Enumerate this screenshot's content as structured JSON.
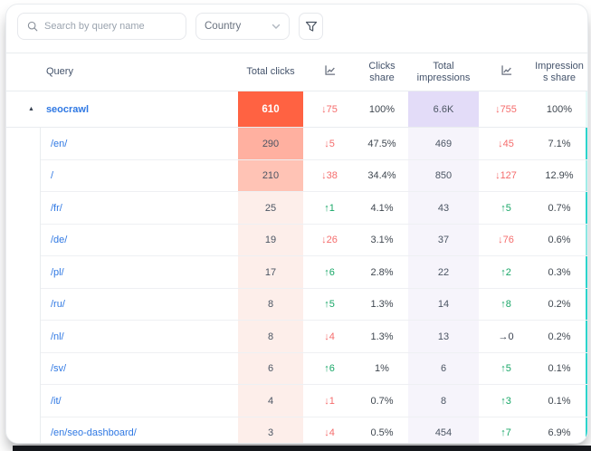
{
  "toolbar": {
    "search": {
      "placeholder": "Search by query name",
      "value": ""
    },
    "country_select": {
      "label": "Country"
    }
  },
  "table": {
    "headers": {
      "query": "Query",
      "total_clicks": "Total clicks",
      "clicks_share_lines": [
        "Clicks",
        "share"
      ],
      "total_impressions_lines": [
        "Total",
        "impressions"
      ],
      "impressions_share_lines": [
        "Impression",
        "s share"
      ]
    },
    "rows": [
      {
        "query": "seocrawl",
        "is_parent": true,
        "total_clicks": "610",
        "clicks_trend": {
          "text": "↓75",
          "dir": "down"
        },
        "clicks_share": "100%",
        "total_impressions": "6.6K",
        "impressions_trend": {
          "text": "↓755",
          "dir": "down"
        },
        "impressions_share": "100%",
        "clicks_cell_bg": "#ff6242",
        "clicks_cell_text": "#ffffff",
        "impressions_cell_bg": "#e3dcf8",
        "right_bar_opacity": 0.12
      },
      {
        "query": "/en/",
        "total_clicks": "290",
        "clicks_trend": {
          "text": "↓5",
          "dir": "down"
        },
        "clicks_share": "47.5%",
        "total_impressions": "469",
        "impressions_trend": {
          "text": "↓45",
          "dir": "down"
        },
        "impressions_share": "7.1%",
        "clicks_cell_bg": "#ffb0a0",
        "impressions_cell_bg": "#f6f4fb",
        "right_bar_opacity": 1
      },
      {
        "query": "/",
        "total_clicks": "210",
        "clicks_trend": {
          "text": "↓38",
          "dir": "down"
        },
        "clicks_share": "34.4%",
        "total_impressions": "850",
        "impressions_trend": {
          "text": "↓127",
          "dir": "down"
        },
        "impressions_share": "12.9%",
        "clicks_cell_bg": "#ffc3b5",
        "impressions_cell_bg": "#f6f4fb",
        "right_bar_opacity": 0.45
      },
      {
        "query": "/fr/",
        "total_clicks": "25",
        "clicks_trend": {
          "text": "↑1",
          "dir": "up"
        },
        "clicks_share": "4.1%",
        "total_impressions": "43",
        "impressions_trend": {
          "text": "↑5",
          "dir": "up"
        },
        "impressions_share": "0.7%",
        "clicks_cell_bg": "#fdeeea",
        "impressions_cell_bg": "#f6f4fb",
        "right_bar_opacity": 1
      },
      {
        "query": "/de/",
        "total_clicks": "19",
        "clicks_trend": {
          "text": "↓26",
          "dir": "down"
        },
        "clicks_share": "3.1%",
        "total_impressions": "37",
        "impressions_trend": {
          "text": "↓76",
          "dir": "down"
        },
        "impressions_share": "0.6%",
        "clicks_cell_bg": "#fdeeea",
        "impressions_cell_bg": "#f6f4fb",
        "right_bar_opacity": 0.55
      },
      {
        "query": "/pl/",
        "total_clicks": "17",
        "clicks_trend": {
          "text": "↑6",
          "dir": "up"
        },
        "clicks_share": "2.8%",
        "total_impressions": "22",
        "impressions_trend": {
          "text": "↑2",
          "dir": "up"
        },
        "impressions_share": "0.3%",
        "clicks_cell_bg": "#fdeeea",
        "impressions_cell_bg": "#f6f4fb",
        "right_bar_opacity": 1
      },
      {
        "query": "/ru/",
        "total_clicks": "8",
        "clicks_trend": {
          "text": "↑5",
          "dir": "up"
        },
        "clicks_share": "1.3%",
        "total_impressions": "14",
        "impressions_trend": {
          "text": "↑8",
          "dir": "up"
        },
        "impressions_share": "0.2%",
        "clicks_cell_bg": "#fdeeea",
        "impressions_cell_bg": "#f6f4fb",
        "right_bar_opacity": 1
      },
      {
        "query": "/nl/",
        "total_clicks": "8",
        "clicks_trend": {
          "text": "↓4",
          "dir": "down"
        },
        "clicks_share": "1.3%",
        "total_impressions": "13",
        "impressions_trend": {
          "text": "→0",
          "dir": "flat"
        },
        "impressions_share": "0.2%",
        "clicks_cell_bg": "#fdeeea",
        "impressions_cell_bg": "#f6f4fb",
        "right_bar_opacity": 1
      },
      {
        "query": "/sv/",
        "total_clicks": "6",
        "clicks_trend": {
          "text": "↑6",
          "dir": "up"
        },
        "clicks_share": "1%",
        "total_impressions": "6",
        "impressions_trend": {
          "text": "↑5",
          "dir": "up"
        },
        "impressions_share": "0.1%",
        "clicks_cell_bg": "#fdeeea",
        "impressions_cell_bg": "#f6f4fb",
        "right_bar_opacity": 1
      },
      {
        "query": "/it/",
        "total_clicks": "4",
        "clicks_trend": {
          "text": "↓1",
          "dir": "down"
        },
        "clicks_share": "0.7%",
        "total_impressions": "8",
        "impressions_trend": {
          "text": "↑3",
          "dir": "up"
        },
        "impressions_share": "0.1%",
        "clicks_cell_bg": "#fdeeea",
        "impressions_cell_bg": "#f6f4fb",
        "right_bar_opacity": 1
      },
      {
        "query": "/en/seo-dashboard/",
        "total_clicks": "3",
        "clicks_trend": {
          "text": "↓4",
          "dir": "down"
        },
        "clicks_share": "0.5%",
        "total_impressions": "454",
        "impressions_trend": {
          "text": "↑7",
          "dir": "up"
        },
        "impressions_share": "6.9%",
        "clicks_cell_bg": "#fdeeea",
        "impressions_cell_bg": "#f6f4fb",
        "right_bar_opacity": 1
      }
    ]
  },
  "colors": {
    "trend_down": "#f56c6c",
    "trend_up": "#18a767",
    "trend_flat": "#3a4150",
    "link_blue": "#2f78e3",
    "right_bar_teal": "#2cd4cc",
    "clicks_accent": "#ff6242",
    "impressions_accent": "#e3dcf8"
  }
}
